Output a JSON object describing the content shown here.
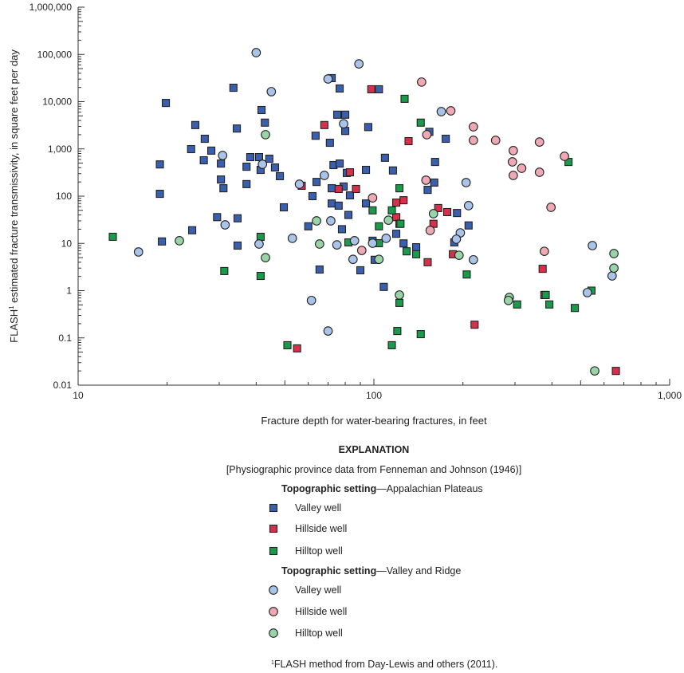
{
  "chart_data": {
    "type": "scatter",
    "xlabel": "Fracture depth for water-bearing fractures, in feet",
    "ylabel": "FLASH",
    "ylabel_superscript": "1",
    "ylabel_rest": " estimated fracture transmissivity, in square feet per day",
    "x_scale": "log",
    "y_scale": "log",
    "xlim": [
      10,
      1000
    ],
    "ylim": [
      0.01,
      1000000
    ],
    "x_ticks": [
      10,
      100,
      1000
    ],
    "x_tick_labels": [
      "10",
      "100",
      "1,000"
    ],
    "y_ticks": [
      0.01,
      0.1,
      1,
      10,
      100,
      1000,
      10000,
      100000,
      1000000
    ],
    "y_tick_labels": [
      "0.01",
      "0.1",
      "1",
      "10",
      "100",
      "1,000",
      "10,000",
      "100,000",
      "1,000,000"
    ],
    "grid": false,
    "legend_placement": "bottom",
    "series": [
      {
        "name": "Valley well",
        "group": "Appalachian Plateaus",
        "marker": "square",
        "color": "#3a5fad",
        "points": [
          [
            33.5,
            19700
          ],
          [
            19.8,
            9400
          ],
          [
            41.7,
            6650
          ],
          [
            24.9,
            3200
          ],
          [
            42.8,
            3600
          ],
          [
            34.4,
            2700
          ],
          [
            26.8,
            1640
          ],
          [
            24.1,
            990
          ],
          [
            28.2,
            920
          ],
          [
            26.6,
            575
          ],
          [
            18.9,
            470
          ],
          [
            30.4,
            490
          ],
          [
            38.2,
            670
          ],
          [
            40.9,
            670
          ],
          [
            44.3,
            620
          ],
          [
            37.1,
            420
          ],
          [
            41.4,
            360
          ],
          [
            46.3,
            405
          ],
          [
            48.1,
            265
          ],
          [
            30.4,
            225
          ],
          [
            37.1,
            180
          ],
          [
            31,
            147
          ],
          [
            18.9,
            112
          ],
          [
            49.6,
            58
          ],
          [
            29.5,
            36
          ],
          [
            34.6,
            34
          ],
          [
            24.3,
            19
          ],
          [
            19.2,
            11
          ],
          [
            34.6,
            9.0
          ],
          [
            72,
            31500
          ],
          [
            76.6,
            19000
          ],
          [
            104,
            18300
          ],
          [
            75.2,
            5300
          ],
          [
            80,
            5300
          ],
          [
            80,
            2400
          ],
          [
            95.7,
            2900
          ],
          [
            154,
            2300
          ],
          [
            175,
            1640
          ],
          [
            63.5,
            1900
          ],
          [
            71,
            1350
          ],
          [
            73,
            455
          ],
          [
            76.6,
            490
          ],
          [
            109,
            650
          ],
          [
            161,
            530
          ],
          [
            81,
            310
          ],
          [
            94,
            360
          ],
          [
            116,
            350
          ],
          [
            64,
            200
          ],
          [
            72,
            147
          ],
          [
            79,
            160
          ],
          [
            160,
            194
          ],
          [
            152,
            136
          ],
          [
            83,
            104
          ],
          [
            62,
            100
          ],
          [
            94,
            70
          ],
          [
            72,
            70
          ],
          [
            76,
            63
          ],
          [
            82,
            40
          ],
          [
            191,
            44
          ],
          [
            60,
            23
          ],
          [
            78,
            20
          ],
          [
            119,
            16
          ],
          [
            99,
            11.4
          ],
          [
            126,
            10
          ],
          [
            139,
            8.3
          ],
          [
            100.6,
            4.5
          ],
          [
            65.5,
            2.8
          ],
          [
            90,
            2.7
          ],
          [
            108,
            1.2
          ],
          [
            187,
            10.5
          ],
          [
            209,
            24
          ]
        ]
      },
      {
        "name": "Hillside well",
        "group": "Appalachian Plateaus",
        "marker": "square",
        "color": "#d6304a",
        "points": [
          [
            98,
            18300
          ],
          [
            68,
            3200
          ],
          [
            131,
            1460
          ],
          [
            83,
            320
          ],
          [
            57,
            166
          ],
          [
            76,
            142
          ],
          [
            87,
            142
          ],
          [
            119,
            73
          ],
          [
            126,
            82
          ],
          [
            165,
            56
          ],
          [
            177,
            46
          ],
          [
            119,
            36
          ],
          [
            122,
            26
          ],
          [
            159,
            26
          ],
          [
            185,
            5.9
          ],
          [
            152,
            4.0
          ],
          [
            55,
            0.06
          ],
          [
            372,
            2.9
          ],
          [
            377,
            0.81
          ],
          [
            219,
            0.19
          ],
          [
            658,
            0.02
          ]
        ]
      },
      {
        "name": "Hilltop well",
        "group": "Appalachian Plateaus",
        "marker": "square",
        "color": "#1a9a4a",
        "points": [
          [
            127,
            11500
          ],
          [
            144,
            3600
          ],
          [
            122,
            147
          ],
          [
            99,
            50
          ],
          [
            115,
            50
          ],
          [
            123,
            26
          ],
          [
            104,
            23
          ],
          [
            82,
            10.5
          ],
          [
            104,
            10.1
          ],
          [
            129,
            6.8
          ],
          [
            139,
            5.9
          ],
          [
            122,
            0.55
          ],
          [
            120,
            0.14
          ],
          [
            144,
            0.12
          ],
          [
            115,
            0.07
          ],
          [
            51,
            0.07
          ],
          [
            13.1,
            13.8
          ],
          [
            41.4,
            13.8
          ],
          [
            31.2,
            2.6
          ],
          [
            41.4,
            2.05
          ],
          [
            206,
            2.2
          ],
          [
            305,
            0.51
          ],
          [
            381,
            0.81
          ],
          [
            392,
            0.51
          ],
          [
            478,
            0.43
          ],
          [
            544,
            1.0
          ],
          [
            455,
            530
          ]
        ]
      },
      {
        "name": "Valley well",
        "group": "Valley and Ridge",
        "marker": "circle",
        "color": "#a9c4e8",
        "points": [
          [
            40,
            109000
          ],
          [
            89,
            63000
          ],
          [
            70,
            30300
          ],
          [
            45,
            16300
          ],
          [
            169,
            6150
          ],
          [
            79,
            3400
          ],
          [
            30.8,
            726
          ],
          [
            42,
            473
          ],
          [
            68,
            275
          ],
          [
            56,
            179
          ],
          [
            205,
            194
          ],
          [
            209,
            63
          ],
          [
            196,
            16.7
          ],
          [
            190,
            12.3
          ],
          [
            217,
            4.5
          ],
          [
            31.4,
            24.7
          ],
          [
            16,
            6.6
          ],
          [
            40.9,
            9.7
          ],
          [
            71.5,
            30
          ],
          [
            53,
            12.8
          ],
          [
            75,
            9.3
          ],
          [
            86,
            11.4
          ],
          [
            99,
            10.1
          ],
          [
            110,
            12.8
          ],
          [
            85,
            4.6
          ],
          [
            61.5,
            0.62
          ],
          [
            70,
            0.14
          ],
          [
            548,
            9.0
          ],
          [
            639,
            2.05
          ],
          [
            527,
            0.91
          ]
        ]
      },
      {
        "name": "Hillside well",
        "group": "Valley and Ridge",
        "marker": "circle",
        "color": "#eea9b4",
        "points": [
          [
            145,
            26000
          ],
          [
            182,
            6400
          ],
          [
            151,
            2000
          ],
          [
            150,
            218
          ],
          [
            155,
            18.8
          ],
          [
            99,
            92
          ],
          [
            217,
            2940
          ],
          [
            217,
            1520
          ],
          [
            258,
            1520
          ],
          [
            363,
            1400
          ],
          [
            296,
            920
          ],
          [
            294,
            532
          ],
          [
            316,
            390
          ],
          [
            296,
            275
          ],
          [
            363,
            321
          ],
          [
            441,
            698
          ],
          [
            397,
            58
          ],
          [
            377,
            6.8
          ],
          [
            91,
            7.1
          ]
        ]
      },
      {
        "name": "Hilltop well",
        "group": "Valley and Ridge",
        "marker": "circle",
        "color": "#98d4a8",
        "points": [
          [
            43,
            2000
          ],
          [
            22,
            11.4
          ],
          [
            43,
            5.0
          ],
          [
            64,
            30
          ],
          [
            65.5,
            9.7
          ],
          [
            112,
            31
          ],
          [
            159,
            42.5
          ],
          [
            104,
            4.6
          ],
          [
            122,
            0.81
          ],
          [
            194,
            5.6
          ],
          [
            287,
            0.72
          ],
          [
            285,
            0.62
          ],
          [
            648,
            6.1
          ],
          [
            648,
            3.0
          ],
          [
            558,
            0.02
          ]
        ]
      }
    ]
  },
  "legend": {
    "title": "EXPLANATION",
    "note": "[Physiographic province data from Fenneman and Johnson (1946)]",
    "groups": [
      {
        "heading_bold": "Topographic setting",
        "heading_rest": "—Appalachian Plateaus",
        "items": [
          "Valley well",
          "Hillside well",
          "Hilltop well"
        ]
      },
      {
        "heading_bold": "Topographic setting",
        "heading_rest": "—Valley and Ridge",
        "items": [
          "Valley well",
          "Hillside well",
          "Hilltop well"
        ]
      }
    ]
  },
  "footnote": {
    "mark": "1",
    "text": "FLASH method from Day-Lewis and others (2011)."
  }
}
